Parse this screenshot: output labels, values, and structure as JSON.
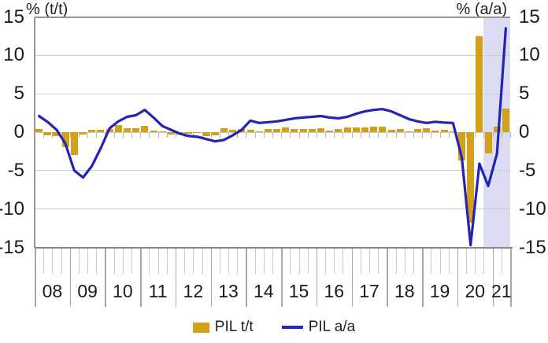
{
  "header": {
    "left_axis_title": "% (t/t)",
    "right_axis_title": "% (a/a)"
  },
  "legend": {
    "bar_label": "PIL t/t",
    "line_label": "PIL a/a"
  },
  "colors": {
    "bar": "#d2a019",
    "line": "#2323b4",
    "forecast_band": "#dbdcf2",
    "grid": "#cccccc",
    "axis": "#949494",
    "tick_minor": "#c9c9c9",
    "tick_major": "#a8a8a8",
    "text": "#1a1a1a"
  },
  "chart_data": {
    "type": "bar+line",
    "title": "",
    "x_unit": "quarter",
    "year_labels": [
      "08",
      "09",
      "10",
      "11",
      "12",
      "13",
      "14",
      "15",
      "16",
      "17",
      "18",
      "19",
      "20",
      "21"
    ],
    "quarters_per_year": [
      4,
      4,
      4,
      4,
      4,
      4,
      4,
      4,
      4,
      4,
      4,
      4,
      4,
      2
    ],
    "total_quarters": 54,
    "y_axis": {
      "min": -15,
      "max": 15,
      "step": 5,
      "left_tick_labels": [
        "15",
        "10",
        "5",
        "0",
        "-5",
        "-10",
        "-15"
      ],
      "right_tick_labels": [
        "15",
        "10",
        "5",
        "0",
        "-5",
        "-10",
        "-15"
      ]
    },
    "grid": "horizontal-on",
    "legend_position": "bottom-center",
    "forecast_band": {
      "start_quarter_index": 51,
      "end_quarter_index": 54
    },
    "series": [
      {
        "name": "PIL t/t",
        "type": "bar",
        "values": [
          0.4,
          -0.4,
          -0.5,
          -1.9,
          -3.0,
          -0.3,
          0.3,
          0.3,
          0.4,
          0.9,
          0.5,
          0.5,
          0.8,
          0.2,
          0.1,
          -0.3,
          -0.3,
          -0.2,
          -0.1,
          -0.5,
          -0.4,
          0.5,
          0.3,
          0.4,
          0.3,
          0.1,
          0.4,
          0.4,
          0.6,
          0.4,
          0.4,
          0.4,
          0.5,
          0.2,
          0.4,
          0.6,
          0.6,
          0.6,
          0.7,
          0.7,
          0.3,
          0.4,
          0.1,
          0.4,
          0.5,
          0.2,
          0.3,
          0.1,
          -3.7,
          -11.8,
          12.5,
          -2.8,
          0.7,
          3.1
        ]
      },
      {
        "name": "PIL a/a",
        "type": "line",
        "values": [
          2.1,
          1.3,
          0.3,
          -1.5,
          -5.0,
          -5.9,
          -4.4,
          -2.1,
          0.5,
          1.4,
          2.0,
          2.2,
          2.9,
          1.9,
          0.8,
          0.3,
          -0.2,
          -0.5,
          -0.6,
          -0.9,
          -1.2,
          -1.0,
          -0.4,
          0.3,
          1.5,
          1.2,
          1.3,
          1.4,
          1.6,
          1.8,
          1.9,
          2.0,
          2.1,
          1.9,
          1.8,
          2.0,
          2.4,
          2.7,
          2.9,
          3.0,
          2.7,
          2.2,
          1.7,
          1.4,
          1.2,
          1.35,
          1.25,
          1.2,
          -3.3,
          -14.7,
          -4.1,
          -7.0,
          -2.8,
          13.5
        ]
      }
    ]
  }
}
